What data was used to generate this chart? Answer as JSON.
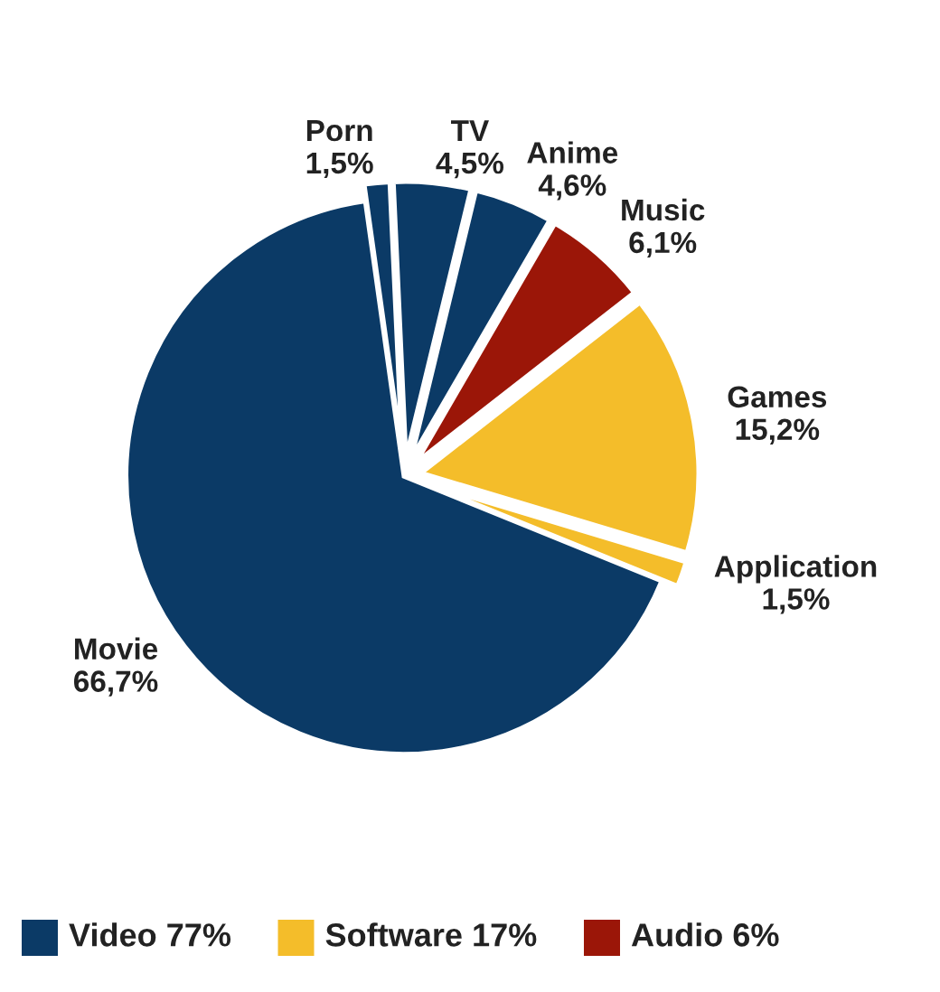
{
  "chart_data": {
    "type": "pie",
    "categories": [
      "Porn",
      "TV",
      "Anime",
      "Music",
      "Games",
      "Application",
      "Movie"
    ],
    "values": [
      1.5,
      4.5,
      4.6,
      6.1,
      15.2,
      1.5,
      66.7
    ],
    "value_labels": [
      "1,5%",
      "4,5%",
      "4,6%",
      "6,1%",
      "15,2%",
      "1,5%",
      "66,7%"
    ],
    "colors": [
      "#0b3a66",
      "#0b3a66",
      "#0b3a66",
      "#9b1608",
      "#f4bd2a",
      "#f4bd2a",
      "#0b3a66"
    ],
    "annotations": [
      "Video 77%",
      "Software 17%",
      "Audio 6%"
    ]
  }
}
